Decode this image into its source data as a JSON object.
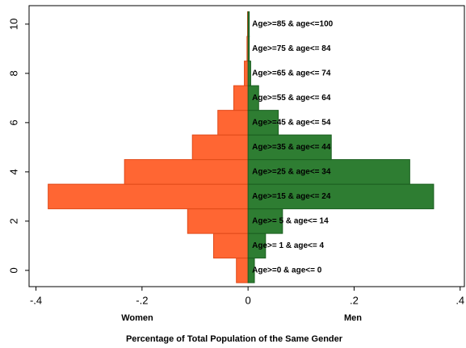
{
  "chart_data": {
    "type": "pyramid",
    "categories": [
      "Age>=0 & age<= 0",
      "Age>= 1 & age<= 4",
      "Age>= 5 & age<= 14",
      "Age>=15 & age<= 24",
      "Age>=25 & age<= 34",
      "Age>=35 & age<= 44",
      "Age>=45 & age<= 54",
      "Age>=55 & age<= 64",
      "Age>=65 & age<= 74",
      "Age>=75 & age<= 84",
      "Age>=85 & age<=100"
    ],
    "series": [
      {
        "name": "Women",
        "color": "#ff6633",
        "values": [
          -0.022,
          -0.065,
          -0.114,
          -0.377,
          -0.233,
          -0.105,
          -0.057,
          -0.027,
          -0.007,
          -0.002,
          -0.001
        ]
      },
      {
        "name": "Men",
        "color": "#2e7d32",
        "values": [
          0.012,
          0.033,
          0.065,
          0.35,
          0.305,
          0.157,
          0.057,
          0.02,
          0.005,
          0.002,
          0.001
        ]
      }
    ],
    "xlabel": "Percentage of Total Population of the Same Gender",
    "xlim": [
      -0.413,
      0.408
    ],
    "xticks": [
      {
        "value": -0.4,
        "label": "-.4"
      },
      {
        "value": -0.2,
        "label": "-.2"
      },
      0,
      {
        "value": 0.2,
        "label": ".2"
      },
      {
        "value": 0.4,
        "label": ".4"
      }
    ],
    "ylim": [
      -0.66,
      10.75
    ],
    "yticks": [
      0,
      2,
      4,
      6,
      8,
      10
    ]
  }
}
